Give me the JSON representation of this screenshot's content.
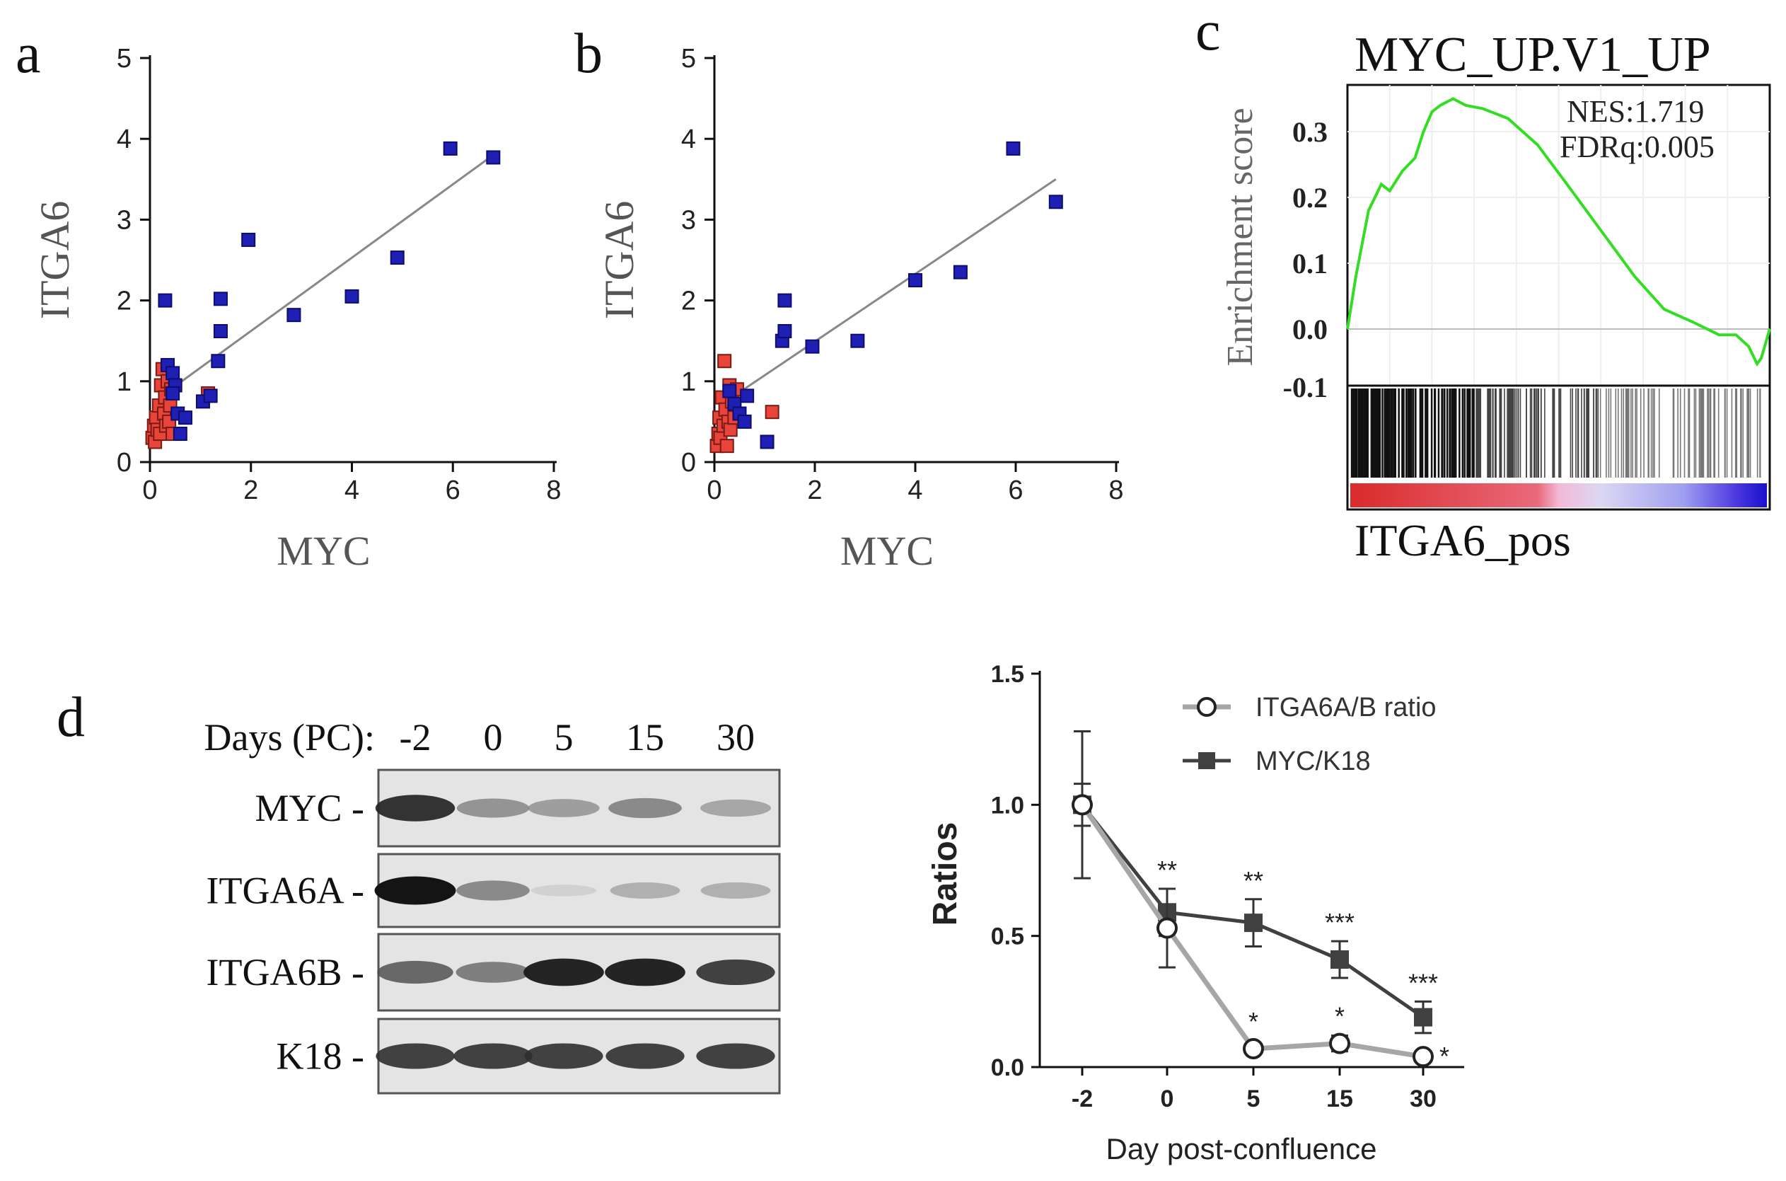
{
  "panels": {
    "a": "a",
    "b": "b",
    "c": "c",
    "d": "d"
  },
  "colors": {
    "blue": "#1f1fb4",
    "red": "#e8443a",
    "gsea_line": "#33dd22",
    "dark": "#404040",
    "light": "#a6a6a6"
  },
  "chart_data": [
    {
      "id": "a",
      "type": "scatter",
      "title": "",
      "xlabel": "MYC",
      "ylabel": "ITGA6",
      "xlim": [
        0,
        8
      ],
      "ylim": [
        0,
        5
      ],
      "xticks": [
        0,
        2,
        4,
        6,
        8
      ],
      "yticks": [
        0,
        1,
        2,
        3,
        4,
        5
      ],
      "series": [
        {
          "name": "blue",
          "color": "#1f1fb4",
          "points": [
            [
              0.3,
              2.0
            ],
            [
              0.35,
              1.2
            ],
            [
              0.45,
              1.1
            ],
            [
              0.5,
              0.95
            ],
            [
              0.45,
              0.85
            ],
            [
              0.55,
              0.6
            ],
            [
              0.6,
              0.35
            ],
            [
              0.7,
              0.55
            ],
            [
              1.05,
              0.75
            ],
            [
              1.2,
              0.82
            ],
            [
              1.35,
              1.25
            ],
            [
              1.4,
              1.62
            ],
            [
              1.4,
              2.02
            ],
            [
              1.95,
              2.75
            ],
            [
              2.85,
              1.82
            ],
            [
              4.0,
              2.05
            ],
            [
              4.9,
              2.53
            ],
            [
              5.95,
              3.88
            ],
            [
              6.8,
              3.77
            ]
          ]
        },
        {
          "name": "red",
          "color": "#e8443a",
          "points": [
            [
              0.05,
              0.3
            ],
            [
              0.08,
              0.45
            ],
            [
              0.1,
              0.25
            ],
            [
              0.12,
              0.55
            ],
            [
              0.15,
              0.4
            ],
            [
              0.18,
              0.7
            ],
            [
              0.2,
              0.35
            ],
            [
              0.22,
              0.95
            ],
            [
              0.25,
              1.15
            ],
            [
              0.28,
              0.6
            ],
            [
              0.3,
              0.8
            ],
            [
              0.32,
              0.45
            ],
            [
              0.35,
              1.0
            ],
            [
              0.38,
              0.5
            ],
            [
              0.4,
              0.7
            ],
            [
              0.42,
              0.9
            ],
            [
              0.45,
              0.35
            ],
            [
              1.15,
              0.85
            ]
          ]
        }
      ],
      "trendline": [
        [
          0.3,
          0.85
        ],
        [
          6.8,
          3.8
        ]
      ]
    },
    {
      "id": "b",
      "type": "scatter",
      "title": "",
      "xlabel": "MYC",
      "ylabel": "ITGA6",
      "xlim": [
        0,
        8
      ],
      "ylim": [
        0,
        5
      ],
      "xticks": [
        0,
        2,
        4,
        6,
        8
      ],
      "yticks": [
        0,
        1,
        2,
        3,
        4,
        5
      ],
      "series": [
        {
          "name": "blue",
          "color": "#1f1fb4",
          "points": [
            [
              0.3,
              0.88
            ],
            [
              0.4,
              0.72
            ],
            [
              0.5,
              0.6
            ],
            [
              0.6,
              0.5
            ],
            [
              0.65,
              0.82
            ],
            [
              1.05,
              0.25
            ],
            [
              1.35,
              1.5
            ],
            [
              1.4,
              1.62
            ],
            [
              1.4,
              2.0
            ],
            [
              1.95,
              1.43
            ],
            [
              2.85,
              1.5
            ],
            [
              4.0,
              2.25
            ],
            [
              4.9,
              2.35
            ],
            [
              5.95,
              3.88
            ],
            [
              6.8,
              3.22
            ]
          ]
        },
        {
          "name": "red",
          "color": "#e8443a",
          "points": [
            [
              0.05,
              0.2
            ],
            [
              0.08,
              0.35
            ],
            [
              0.1,
              0.55
            ],
            [
              0.12,
              0.3
            ],
            [
              0.15,
              0.8
            ],
            [
              0.18,
              0.45
            ],
            [
              0.2,
              1.25
            ],
            [
              0.22,
              0.65
            ],
            [
              0.25,
              0.2
            ],
            [
              0.28,
              0.5
            ],
            [
              0.3,
              0.95
            ],
            [
              0.32,
              0.4
            ],
            [
              0.35,
              0.75
            ],
            [
              0.4,
              0.55
            ],
            [
              0.45,
              0.9
            ],
            [
              1.15,
              0.62
            ]
          ]
        }
      ],
      "trendline": [
        [
          0.3,
          0.78
        ],
        [
          6.8,
          3.5
        ]
      ]
    },
    {
      "id": "c",
      "type": "line",
      "title": "MYC_UP.V1_UP",
      "ylabel": "Enrichment score",
      "xlabel": "ITGA6_pos",
      "ylim": [
        -0.1,
        0.35
      ],
      "yticks": [
        0.3,
        0.2,
        0.1,
        0.0,
        -0.1
      ],
      "ytick_labels": [
        "0.3",
        "0.2",
        "0.1",
        "0.0",
        "-0.1"
      ],
      "annotations": [
        "NES:1.719",
        "FDRq:0.005"
      ],
      "curve": [
        [
          0,
          0.0
        ],
        [
          0.02,
          0.08
        ],
        [
          0.05,
          0.18
        ],
        [
          0.08,
          0.22
        ],
        [
          0.1,
          0.21
        ],
        [
          0.13,
          0.24
        ],
        [
          0.16,
          0.26
        ],
        [
          0.18,
          0.3
        ],
        [
          0.2,
          0.33
        ],
        [
          0.22,
          0.34
        ],
        [
          0.25,
          0.35
        ],
        [
          0.28,
          0.34
        ],
        [
          0.32,
          0.335
        ],
        [
          0.38,
          0.32
        ],
        [
          0.45,
          0.28
        ],
        [
          0.52,
          0.22
        ],
        [
          0.6,
          0.15
        ],
        [
          0.68,
          0.08
        ],
        [
          0.75,
          0.03
        ],
        [
          0.82,
          0.01
        ],
        [
          0.88,
          -0.01
        ],
        [
          0.92,
          -0.01
        ],
        [
          0.95,
          -0.03
        ],
        [
          0.97,
          -0.06
        ],
        [
          0.98,
          -0.05
        ],
        [
          1.0,
          0.0
        ]
      ]
    },
    {
      "id": "d_line",
      "type": "line",
      "title": "",
      "xlabel": "Day post-confluence",
      "ylabel": "Ratios",
      "categories": [
        "-2",
        "0",
        "5",
        "15",
        "30"
      ],
      "ylim": [
        0,
        1.5
      ],
      "yticks": [
        0.0,
        0.5,
        1.0,
        1.5
      ],
      "ytick_labels": [
        "0.0",
        "0.5",
        "1.0",
        "1.5"
      ],
      "series": [
        {
          "name": "ITGA6A/B ratio",
          "marker": "open-circle",
          "color": "#a6a6a6",
          "values": [
            1.0,
            0.53,
            0.07,
            0.09,
            0.04
          ],
          "errors": [
            0.28,
            0.15,
            0.02,
            0.03,
            0.01
          ],
          "stars": [
            "",
            "",
            "*",
            "*",
            "*"
          ]
        },
        {
          "name": "MYC/K18",
          "marker": "filled-square",
          "color": "#404040",
          "values": [
            1.0,
            0.59,
            0.55,
            0.41,
            0.19
          ],
          "errors": [
            0.08,
            0.09,
            0.09,
            0.07,
            0.06
          ],
          "stars": [
            "",
            "**",
            "**",
            "***",
            "***"
          ]
        }
      ]
    }
  ],
  "blot": {
    "header_label": "Days (PC):",
    "days": [
      "-2",
      "0",
      "5",
      "15",
      "30"
    ],
    "rows": [
      {
        "label": "MYC",
        "intensity": [
          0.9,
          0.5,
          0.45,
          0.55,
          0.4
        ]
      },
      {
        "label": "ITGA6A",
        "intensity": [
          1.0,
          0.55,
          0.1,
          0.35,
          0.35
        ]
      },
      {
        "label": "ITGA6B",
        "intensity": [
          0.7,
          0.6,
          0.95,
          0.95,
          0.85
        ]
      },
      {
        "label": "K18",
        "intensity": [
          0.85,
          0.85,
          0.85,
          0.85,
          0.85
        ]
      }
    ]
  }
}
